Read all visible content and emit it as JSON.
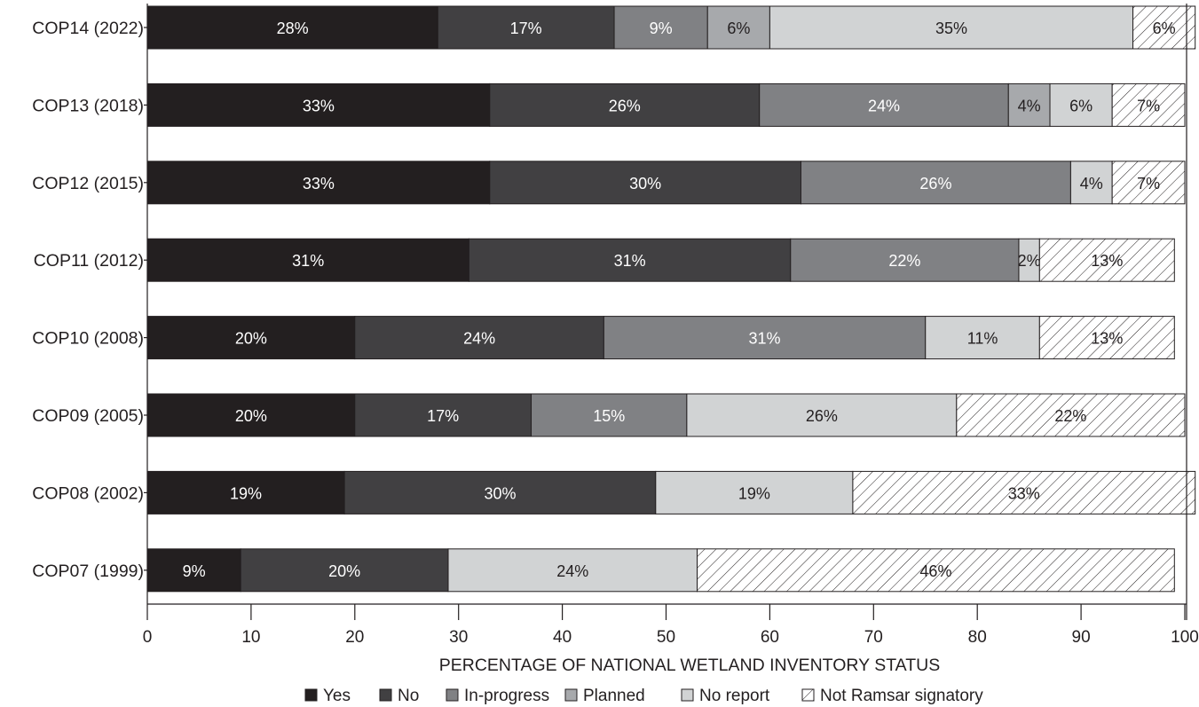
{
  "chart_data": {
    "type": "bar",
    "orientation": "horizontal",
    "stacked": true,
    "xlabel": "PERCENTAGE OF NATIONAL WETLAND INVENTORY STATUS",
    "xlim": [
      0,
      100
    ],
    "xticks": [
      0,
      10,
      20,
      30,
      40,
      50,
      60,
      70,
      80,
      90,
      100
    ],
    "grid": false,
    "legend_position": "bottom",
    "categories": [
      "COP14 (2022)",
      "COP13 (2018)",
      "COP12 (2015)",
      "COP11 (2012)",
      "COP10 (2008)",
      "COP09 (2005)",
      "COP08 (2002)",
      "COP07 (1999)"
    ],
    "series": [
      {
        "name": "Yes",
        "color": "#231f20",
        "label_color": "#ffffff",
        "pattern": "solid",
        "values": [
          28,
          33,
          33,
          31,
          20,
          20,
          19,
          9
        ]
      },
      {
        "name": "No",
        "color": "#414042",
        "label_color": "#ffffff",
        "pattern": "solid",
        "values": [
          17,
          26,
          30,
          31,
          24,
          17,
          30,
          20
        ]
      },
      {
        "name": "In-progress",
        "color": "#808184",
        "label_color": "#ffffff",
        "pattern": "solid",
        "values": [
          9,
          24,
          26,
          22,
          31,
          15,
          0,
          0
        ]
      },
      {
        "name": "Planned",
        "color": "#a7a9ac",
        "label_color": "#231f20",
        "pattern": "solid",
        "values": [
          6,
          4,
          0,
          0,
          0,
          0,
          0,
          0
        ]
      },
      {
        "name": "No report",
        "color": "#d1d3d4",
        "label_color": "#231f20",
        "pattern": "solid",
        "values": [
          35,
          6,
          4,
          2,
          11,
          26,
          19,
          24
        ]
      },
      {
        "name": "Not Ramsar signatory",
        "color": "#ffffff",
        "label_color": "#231f20",
        "pattern": "hatch",
        "values": [
          6,
          7,
          7,
          13,
          13,
          22,
          33,
          46
        ]
      }
    ]
  }
}
